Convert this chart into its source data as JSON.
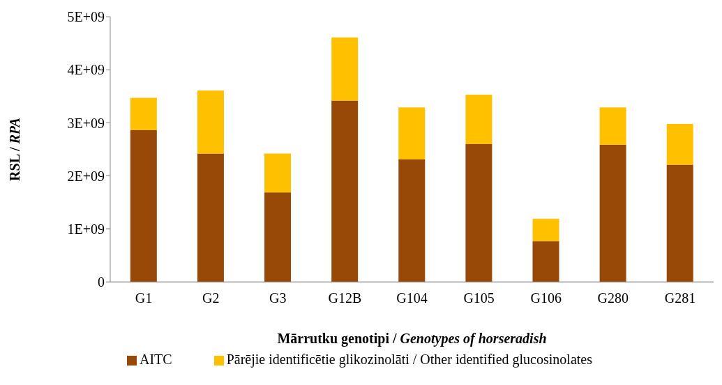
{
  "chart_data": {
    "type": "bar",
    "stacked": true,
    "xlabel": "Mārrutku genotipi / Genotypes of horseradish",
    "ylabel": "RSL / RPA",
    "categories": [
      "G1",
      "G2",
      "G3",
      "G12B",
      "G104",
      "G105",
      "G106",
      "G280",
      "G281"
    ],
    "series": [
      {
        "name": "AITC",
        "color": "#984807",
        "values": [
          2860000000.0,
          2420000000.0,
          1690000000.0,
          3420000000.0,
          2310000000.0,
          2600000000.0,
          770000000.0,
          2590000000.0,
          2210000000.0
        ]
      },
      {
        "name": "Pārējie identificētie glikozinolāti / Other identified glucosinolates",
        "color": "#ffc000",
        "values": [
          610000000.0,
          1190000000.0,
          730000000.0,
          1190000000.0,
          980000000.0,
          930000000.0,
          420000000.0,
          700000000.0,
          770000000.0
        ]
      }
    ],
    "ylim": [
      0,
      5000000000.0
    ],
    "yticks": [
      0,
      {
        "value": 1000000000.0,
        "label": "1E+09"
      },
      {
        "value": 2000000000.0,
        "label": "2E+09"
      },
      {
        "value": 3000000000.0,
        "label": "3E+09"
      },
      {
        "value": 4000000000.0,
        "label": "4E+09"
      },
      {
        "value": 5000000000.0,
        "label": "5E+09"
      }
    ],
    "grid": false,
    "legend": "bottom"
  }
}
